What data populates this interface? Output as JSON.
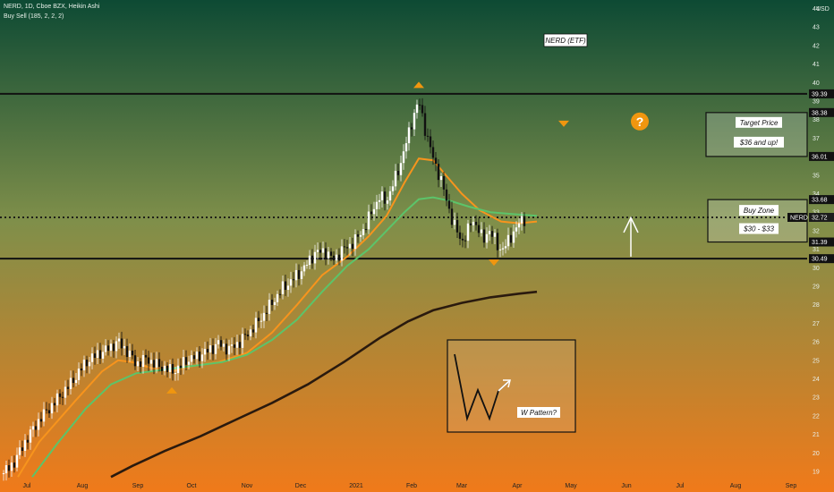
{
  "header": {
    "symbol_line": "NERD, 1D, Cboe BZX, Heikin Ashi",
    "indicator_line": "Buy Sell  (185, 2, 2, 2)"
  },
  "axis": {
    "currency": "USD"
  },
  "ticker_tag": "NERD",
  "annotations": {
    "title_box": "NERD (ETF)",
    "target_title": "Target Price",
    "target_value": "$36 and up!",
    "buy_title": "Buy Zone",
    "buy_value": "$30 - $33",
    "w_pattern": "W Pattern?",
    "question": "?"
  },
  "colors": {
    "bg_top": "#0d4a34",
    "bg_mid": "#7f8f4a",
    "bg_bottom": "#f07a1a",
    "up_candle": "#ffffff",
    "down_candle": "#111111",
    "ma_fast": "#f7941d",
    "ma_mid": "#5cc46a",
    "ma_slow": "#2a1a0e",
    "triangle": "#f0960f"
  },
  "chart_data": {
    "type": "candlestick",
    "ylim": [
      18.6,
      44.6
    ],
    "yticks": [
      19,
      20,
      21,
      22,
      23,
      24,
      25,
      26,
      27,
      28,
      29,
      30,
      31,
      32,
      33,
      34,
      35,
      36,
      37,
      38,
      39,
      40,
      41,
      42,
      43,
      44
    ],
    "xlim": [
      0,
      320
    ],
    "xticks": [
      {
        "label": "Jul",
        "t": 13
      },
      {
        "label": "Aug",
        "t": 44
      },
      {
        "label": "Sep",
        "t": 75
      },
      {
        "label": "Oct",
        "t": 105
      },
      {
        "label": "Nov",
        "t": 136
      },
      {
        "label": "Dec",
        "t": 166
      },
      {
        "label": "2021",
        "t": 197
      },
      {
        "label": "Feb",
        "t": 228
      },
      {
        "label": "Mar",
        "t": 256
      },
      {
        "label": "Apr",
        "t": 287
      },
      {
        "label": "May",
        "t": 317
      },
      {
        "label": "Jun",
        "t": 348
      },
      {
        "label": "Jul",
        "t": 378
      },
      {
        "label": "Aug",
        "t": 409
      },
      {
        "label": "Sep",
        "t": 440
      }
    ],
    "price_anchors": [
      [
        0,
        18.9
      ],
      [
        6,
        19.5
      ],
      [
        12,
        20.6
      ],
      [
        20,
        21.8
      ],
      [
        30,
        22.9
      ],
      [
        38,
        23.8
      ],
      [
        46,
        24.9
      ],
      [
        52,
        25.3
      ],
      [
        58,
        25.6
      ],
      [
        64,
        26.0
      ],
      [
        70,
        25.4
      ],
      [
        74,
        24.8
      ],
      [
        80,
        25.1
      ],
      [
        86,
        24.7
      ],
      [
        90,
        24.6
      ],
      [
        94,
        24.4
      ],
      [
        98,
        24.6
      ],
      [
        102,
        25.0
      ],
      [
        108,
        25.2
      ],
      [
        114,
        25.5
      ],
      [
        120,
        25.9
      ],
      [
        126,
        25.6
      ],
      [
        132,
        26.0
      ],
      [
        138,
        26.6
      ],
      [
        144,
        27.3
      ],
      [
        150,
        28.1
      ],
      [
        156,
        28.9
      ],
      [
        162,
        29.4
      ],
      [
        168,
        30.0
      ],
      [
        174,
        30.8
      ],
      [
        180,
        30.9
      ],
      [
        184,
        30.4
      ],
      [
        190,
        31.0
      ],
      [
        196,
        31.4
      ],
      [
        202,
        32.2
      ],
      [
        206,
        33.1
      ],
      [
        210,
        33.8
      ],
      [
        214,
        33.6
      ],
      [
        218,
        34.6
      ],
      [
        222,
        35.7
      ],
      [
        226,
        37.1
      ],
      [
        229,
        38.2
      ],
      [
        232,
        39.0
      ],
      [
        235,
        37.7
      ],
      [
        238,
        36.6
      ],
      [
        241,
        35.6
      ],
      [
        244,
        34.9
      ],
      [
        247,
        33.8
      ],
      [
        250,
        32.8
      ],
      [
        253,
        32.0
      ],
      [
        256,
        31.4
      ],
      [
        259,
        31.9
      ],
      [
        262,
        32.6
      ],
      [
        265,
        32.2
      ],
      [
        268,
        31.4
      ],
      [
        271,
        32.1
      ],
      [
        274,
        31.6
      ],
      [
        277,
        31.0
      ],
      [
        280,
        31.1
      ],
      [
        283,
        31.6
      ],
      [
        286,
        32.1
      ],
      [
        289,
        32.5
      ],
      [
        292,
        32.7
      ]
    ],
    "series": [
      {
        "name": "",
        "key": "fast",
        "values": [
          [
            8,
            18.7
          ],
          [
            20,
            20.6
          ],
          [
            40,
            22.8
          ],
          [
            55,
            24.4
          ],
          [
            64,
            25.0
          ],
          [
            72,
            24.9
          ],
          [
            82,
            24.6
          ],
          [
            94,
            24.4
          ],
          [
            106,
            24.7
          ],
          [
            120,
            24.9
          ],
          [
            136,
            25.4
          ],
          [
            150,
            26.5
          ],
          [
            164,
            28.0
          ],
          [
            178,
            29.6
          ],
          [
            192,
            30.6
          ],
          [
            204,
            31.7
          ],
          [
            214,
            32.8
          ],
          [
            224,
            34.6
          ],
          [
            232,
            35.9
          ],
          [
            240,
            35.8
          ],
          [
            248,
            34.9
          ],
          [
            256,
            34.0
          ],
          [
            266,
            33.1
          ],
          [
            278,
            32.5
          ],
          [
            288,
            32.4
          ],
          [
            298,
            32.5
          ]
        ]
      },
      {
        "name": "",
        "key": "mid",
        "values": [
          [
            16,
            18.7
          ],
          [
            30,
            20.5
          ],
          [
            46,
            22.4
          ],
          [
            60,
            23.7
          ],
          [
            74,
            24.3
          ],
          [
            90,
            24.5
          ],
          [
            106,
            24.7
          ],
          [
            122,
            24.9
          ],
          [
            136,
            25.3
          ],
          [
            150,
            26.1
          ],
          [
            164,
            27.2
          ],
          [
            178,
            28.7
          ],
          [
            192,
            30.1
          ],
          [
            204,
            31.0
          ],
          [
            214,
            32.0
          ],
          [
            224,
            33.0
          ],
          [
            232,
            33.7
          ],
          [
            240,
            33.8
          ],
          [
            250,
            33.6
          ],
          [
            260,
            33.3
          ],
          [
            272,
            33.0
          ],
          [
            284,
            32.9
          ],
          [
            298,
            32.8
          ]
        ]
      },
      {
        "name": "",
        "key": "slow",
        "values": [
          [
            60,
            18.7
          ],
          [
            72,
            19.3
          ],
          [
            90,
            20.1
          ],
          [
            110,
            20.9
          ],
          [
            130,
            21.8
          ],
          [
            150,
            22.7
          ],
          [
            170,
            23.7
          ],
          [
            190,
            24.9
          ],
          [
            210,
            26.2
          ],
          [
            226,
            27.1
          ],
          [
            240,
            27.7
          ],
          [
            256,
            28.1
          ],
          [
            272,
            28.4
          ],
          [
            288,
            28.6
          ],
          [
            298,
            28.7
          ]
        ]
      }
    ],
    "levels": [
      {
        "price": 39.39,
        "label": "39.39",
        "style": "solid"
      },
      {
        "price": 38.38,
        "label": "38.38",
        "style": "none"
      },
      {
        "price": 36.01,
        "label": "36.01",
        "style": "none"
      },
      {
        "price": 33.68,
        "label": "33.68",
        "style": "none"
      },
      {
        "price": 32.72,
        "label": "32.72",
        "style": "dotted"
      },
      {
        "price": 31.39,
        "label": "31.39",
        "style": "none"
      },
      {
        "price": 30.49,
        "label": "30.49",
        "style": "solid"
      }
    ],
    "target_zone": [
      36.01,
      38.38
    ],
    "buy_zone": [
      31.39,
      33.68
    ],
    "markers": [
      {
        "type": "triangle-down",
        "t": 94,
        "price": 23.4
      },
      {
        "type": "triangle-down",
        "t": 232,
        "price": 39.9
      },
      {
        "type": "triangle-up",
        "t": 313,
        "price": 37.8
      },
      {
        "type": "triangle-up",
        "t": 274,
        "price": 30.3
      }
    ]
  }
}
